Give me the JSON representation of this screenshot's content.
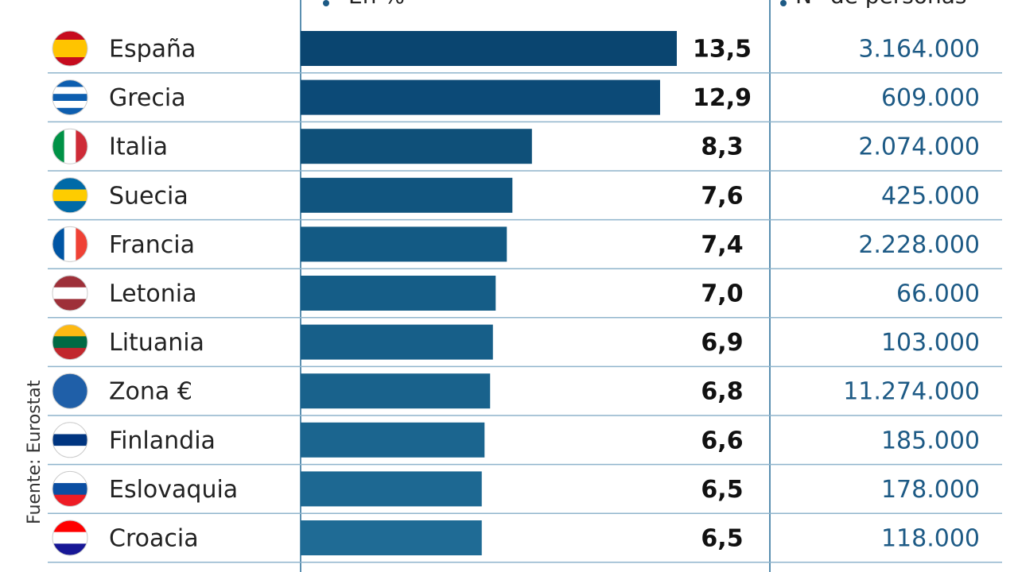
{
  "chart_data": {
    "type": "hbar",
    "value_header": "En %",
    "count_header": "N° de personas",
    "source": "Fuente: Eurostat",
    "categories": [
      "España",
      "Grecia",
      "Italia",
      "Suecia",
      "Francia",
      "Letonia",
      "Lituania",
      "Zona €",
      "Finlandia",
      "Eslovaquia",
      "Croacia"
    ],
    "values": [
      13.5,
      12.9,
      8.3,
      7.6,
      7.4,
      7.0,
      6.9,
      6.8,
      6.6,
      6.5,
      6.5
    ],
    "value_labels": [
      "13,5",
      "12,9",
      "8,3",
      "7,6",
      "7,4",
      "7,0",
      "6,9",
      "6,8",
      "6,6",
      "6,5",
      "6,5"
    ],
    "colors": [
      "#0a4570",
      "#0c4a77",
      "#0f5079",
      "#11557f",
      "#135a84",
      "#155d87",
      "#175f89",
      "#19628c",
      "#1b658f",
      "#1d6892",
      "#1f6b95"
    ],
    "persons": {
      "values": [
        3164000,
        609000,
        2074000,
        425000,
        2228000,
        66000,
        103000,
        11274000,
        185000,
        178000,
        118000
      ],
      "value_labels": [
        "3.164.000",
        "609.000",
        "2.074.000",
        "425.000",
        "2.228.000",
        "66.000",
        "103.000",
        "11.274.000",
        "185.000",
        "178.000",
        "118.000"
      ],
      "color": "#1d5a85"
    }
  }
}
